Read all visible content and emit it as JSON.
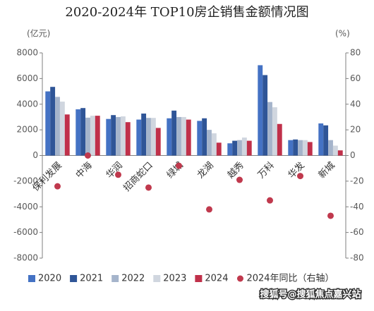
{
  "chart_data": {
    "type": "bar",
    "title": "2020-2024年 TOP10房企销售金额情况图",
    "y_label": "(亿元)",
    "y2_label": "(%)",
    "categories": [
      "保利发展",
      "中海",
      "华润",
      "招商蛇口",
      "绿城",
      "龙湖",
      "越秀",
      "万科",
      "华发",
      "新城"
    ],
    "series": [
      {
        "name": "2020",
        "color": "#4472c4",
        "values": [
          5000,
          3600,
          2850,
          2800,
          2900,
          2700,
          950,
          7040,
          1200,
          2500
        ]
      },
      {
        "name": "2021",
        "color": "#2f5597",
        "values": [
          5350,
          3700,
          3150,
          3270,
          3500,
          2900,
          1150,
          6270,
          1250,
          2350
        ]
      },
      {
        "name": "2022",
        "color": "#a5b4cb",
        "values": [
          4570,
          2950,
          3000,
          2930,
          3000,
          2000,
          1200,
          4170,
          1200,
          1200
        ]
      },
      {
        "name": "2023",
        "color": "#d0d6df",
        "values": [
          4200,
          3100,
          3050,
          2930,
          3000,
          1730,
          1400,
          3760,
          1200,
          770
        ]
      },
      {
        "name": "2024",
        "color": "#c0304a",
        "values": [
          3200,
          3100,
          2600,
          2150,
          2800,
          1000,
          1150,
          2460,
          1050,
          400
        ]
      },
      {
        "name": "2024年同比（右轴）",
        "color": "#c0394d",
        "type": "scatter",
        "axis": "y2",
        "values": [
          -24,
          0,
          -15,
          -25,
          -8,
          -42,
          -19,
          -35,
          -16,
          -47
        ]
      }
    ],
    "ylim": [
      -8000,
      8000
    ],
    "yticks": [
      -8000,
      -6000,
      -4000,
      -2000,
      0,
      2000,
      4000,
      6000,
      8000
    ],
    "y2lim": [
      -80,
      80
    ],
    "y2ticks": [
      -80,
      -60,
      -40,
      -20,
      0,
      20,
      40,
      60,
      80
    ],
    "legend": "bottom",
    "watermark": "搜狐号@搜狐焦点嘉兴站"
  }
}
